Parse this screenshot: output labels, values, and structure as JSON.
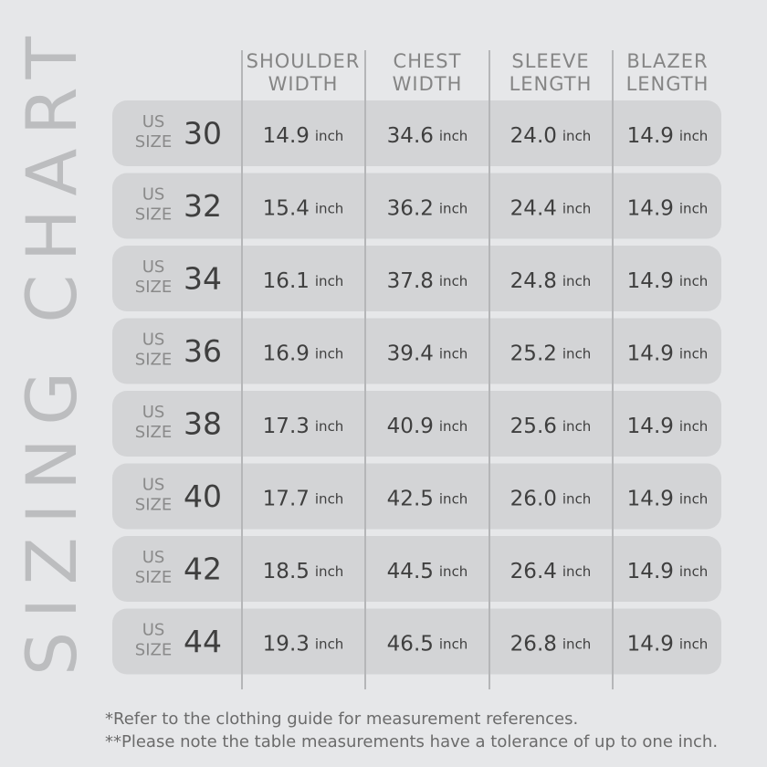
{
  "title": "SIZING CHART",
  "columns": [
    [
      "SHOULDER",
      "WIDTH"
    ],
    [
      "CHEST",
      "WIDTH"
    ],
    [
      "SLEEVE",
      "LENGTH"
    ],
    [
      "BLAZER",
      "LENGTH"
    ]
  ],
  "rows": [
    {
      "us": "US",
      "size": "SIZE",
      "number": "30",
      "cells": [
        {
          "value": "14.9",
          "unit": "inch"
        },
        {
          "value": "34.6",
          "unit": "inch"
        },
        {
          "value": "24.0",
          "unit": "inch"
        },
        {
          "value": "14.9",
          "unit": "inch"
        }
      ]
    },
    {
      "us": "US",
      "size": "SIZE",
      "number": "32",
      "cells": [
        {
          "value": "15.4",
          "unit": "inch"
        },
        {
          "value": "36.2",
          "unit": "inch"
        },
        {
          "value": "24.4",
          "unit": "inch"
        },
        {
          "value": "14.9",
          "unit": "inch"
        }
      ]
    },
    {
      "us": "US",
      "size": "SIZE",
      "number": "34",
      "cells": [
        {
          "value": "16.1",
          "unit": "inch"
        },
        {
          "value": "37.8",
          "unit": "inch"
        },
        {
          "value": "24.8",
          "unit": "inch"
        },
        {
          "value": "14.9",
          "unit": "inch"
        }
      ]
    },
    {
      "us": "US",
      "size": "SIZE",
      "number": "36",
      "cells": [
        {
          "value": "16.9",
          "unit": "inch"
        },
        {
          "value": "39.4",
          "unit": "inch"
        },
        {
          "value": "25.2",
          "unit": "inch"
        },
        {
          "value": "14.9",
          "unit": "inch"
        }
      ]
    },
    {
      "us": "US",
      "size": "SIZE",
      "number": "38",
      "cells": [
        {
          "value": "17.3",
          "unit": "inch"
        },
        {
          "value": "40.9",
          "unit": "inch"
        },
        {
          "value": "25.6",
          "unit": "inch"
        },
        {
          "value": "14.9",
          "unit": "inch"
        }
      ]
    },
    {
      "us": "US",
      "size": "SIZE",
      "number": "40",
      "cells": [
        {
          "value": "17.7",
          "unit": "inch"
        },
        {
          "value": "42.5",
          "unit": "inch"
        },
        {
          "value": "26.0",
          "unit": "inch"
        },
        {
          "value": "14.9",
          "unit": "inch"
        }
      ]
    },
    {
      "us": "US",
      "size": "SIZE",
      "number": "42",
      "cells": [
        {
          "value": "18.5",
          "unit": "inch"
        },
        {
          "value": "44.5",
          "unit": "inch"
        },
        {
          "value": "26.4",
          "unit": "inch"
        },
        {
          "value": "14.9",
          "unit": "inch"
        }
      ]
    },
    {
      "us": "US",
      "size": "SIZE",
      "number": "44",
      "cells": [
        {
          "value": "19.3",
          "unit": "inch"
        },
        {
          "value": "46.5",
          "unit": "inch"
        },
        {
          "value": "26.8",
          "unit": "inch"
        },
        {
          "value": "14.9",
          "unit": "inch"
        }
      ]
    }
  ],
  "notes": [
    "*Refer to the clothing guide for measurement references.",
    "**Please note the table measurements have a tolerance of up to one inch."
  ]
}
